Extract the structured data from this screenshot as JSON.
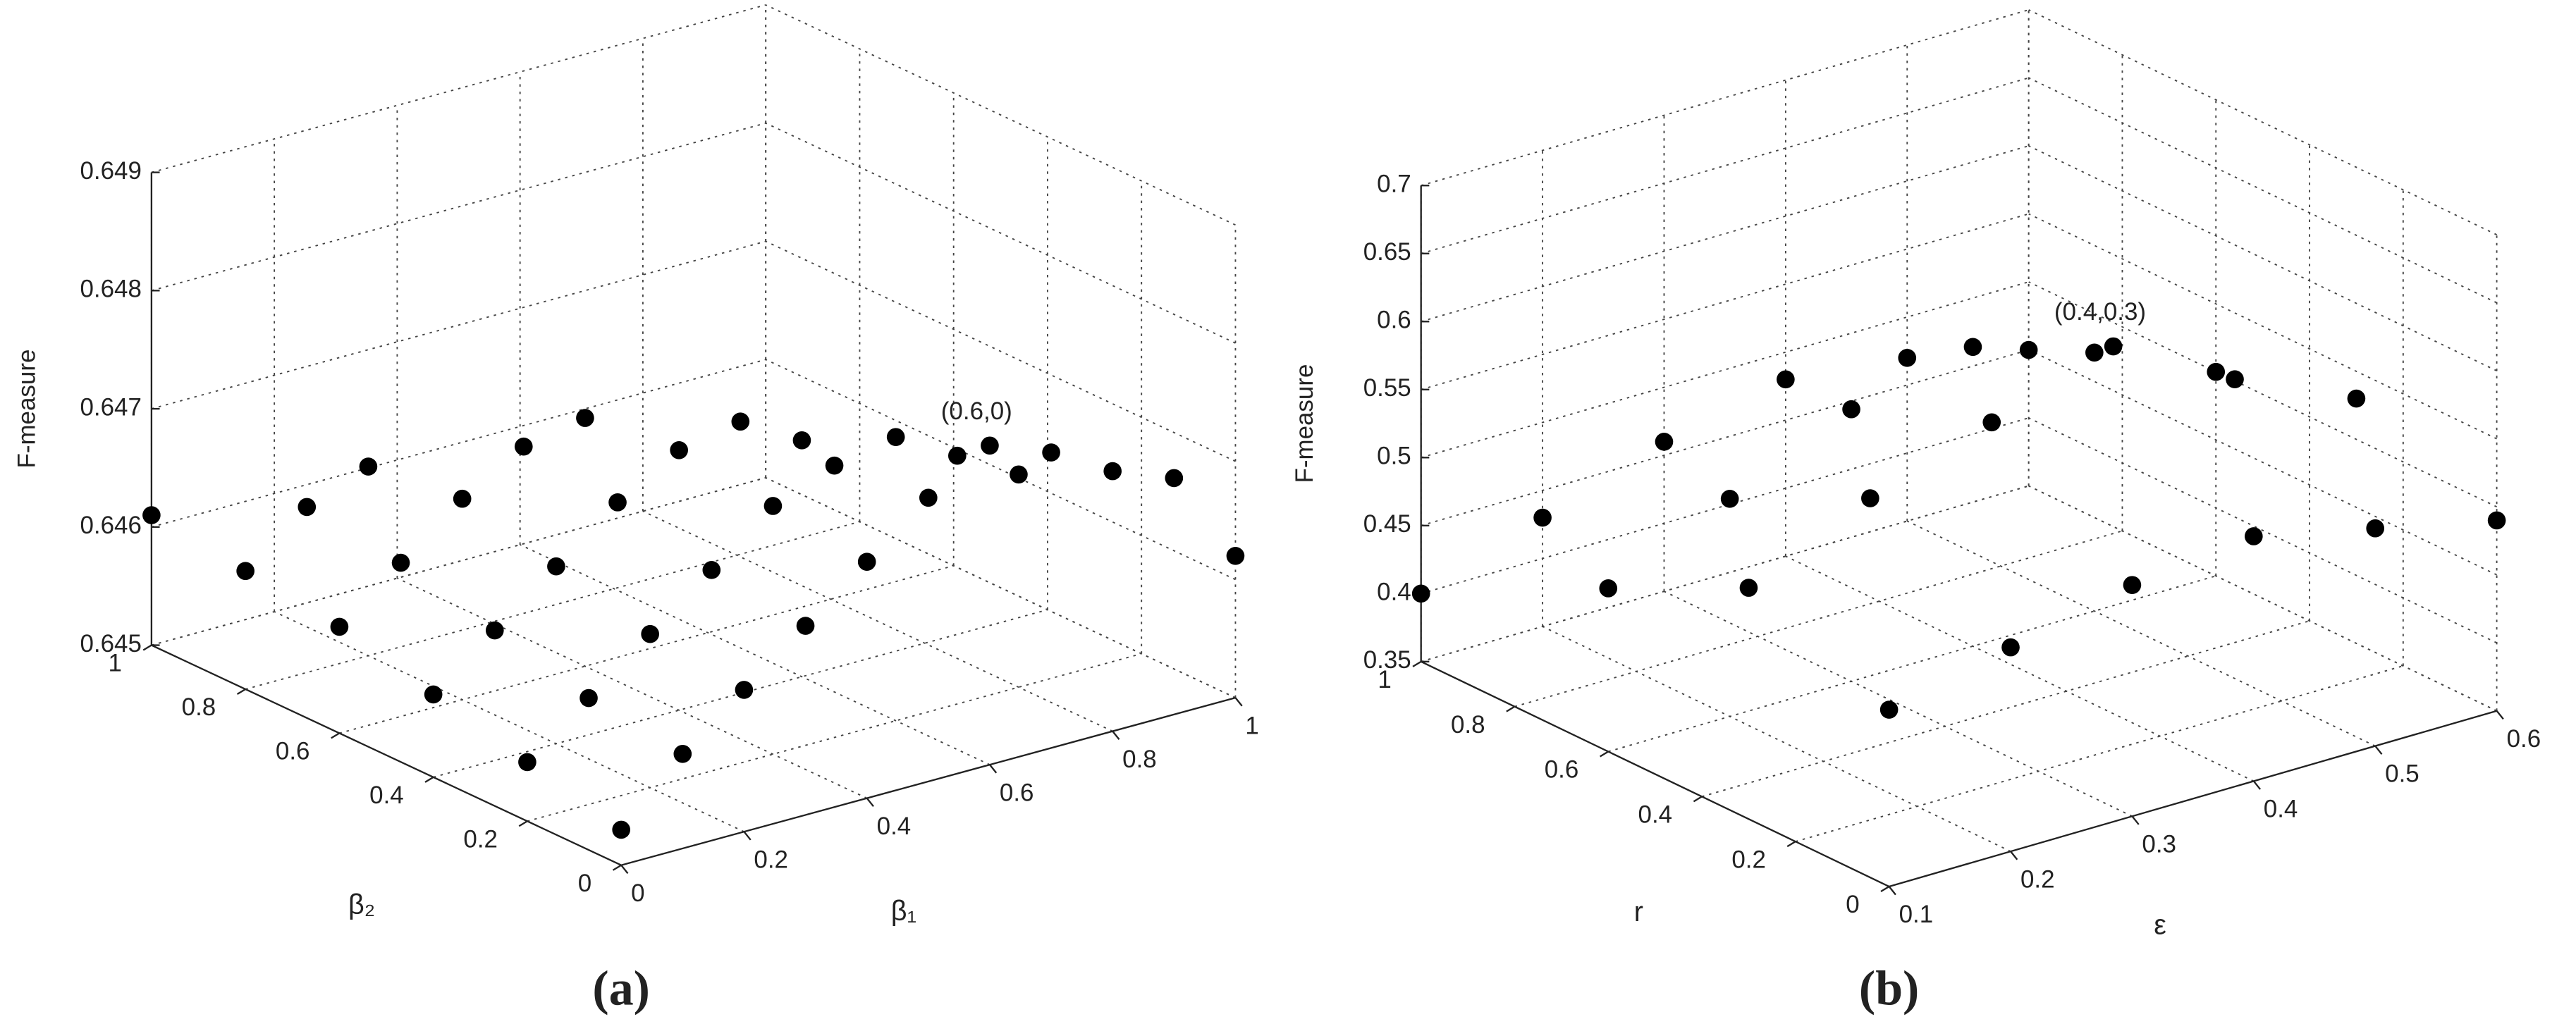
{
  "chart_data": [
    {
      "type": "scatter3d",
      "caption": "(a)",
      "xlabel": "β₁",
      "ylabel": "β₂",
      "zlabel": "F-measure",
      "annotation": "(0.6,0)",
      "color": "#000000",
      "xlim": [
        0,
        1
      ],
      "ylim": [
        0,
        1
      ],
      "zlim": [
        0.645,
        0.649
      ],
      "xticks": [
        0,
        0.2,
        0.4,
        0.6,
        0.8,
        1
      ],
      "yticks": [
        0,
        0.2,
        0.4,
        0.6,
        0.8,
        1
      ],
      "zticks": [
        0.645,
        0.646,
        0.647,
        0.648,
        0.649
      ],
      "grid": true,
      "x": [
        0,
        0.1,
        0.2,
        0.3,
        0.4,
        0.5,
        0.6,
        0.7,
        0.8,
        0.9,
        1,
        0,
        0.1,
        0.2,
        0.3,
        0.4,
        0.5,
        0.6,
        0.7,
        0.8,
        0,
        0.1,
        0.2,
        0.3,
        0.4,
        0.5,
        0.6,
        0,
        0.1,
        0.2,
        0.3,
        0.4,
        0,
        0.1,
        0.2,
        0
      ],
      "y": [
        0,
        0,
        0,
        0,
        0,
        0,
        0,
        0,
        0,
        0,
        0,
        0.2,
        0.2,
        0.2,
        0.2,
        0.2,
        0.2,
        0.2,
        0.2,
        0.2,
        0.4,
        0.4,
        0.4,
        0.4,
        0.4,
        0.4,
        0.4,
        0.6,
        0.6,
        0.6,
        0.6,
        0.6,
        0.8,
        0.8,
        0.8,
        1
      ],
      "z": [
        0.6453,
        0.6458,
        0.6462,
        0.6466,
        0.647,
        0.6474,
        0.6477,
        0.6475,
        0.6472,
        0.647,
        0.6462,
        0.6455,
        0.6459,
        0.6463,
        0.6467,
        0.6471,
        0.6473,
        0.6474,
        0.6471,
        0.6468,
        0.6457,
        0.6461,
        0.6465,
        0.6469,
        0.6472,
        0.6473,
        0.647,
        0.6459,
        0.6463,
        0.6467,
        0.647,
        0.6471,
        0.646,
        0.6464,
        0.6466,
        0.6461
      ]
    },
    {
      "type": "scatter3d",
      "caption": "(b)",
      "xlabel": "ε",
      "ylabel": "r",
      "zlabel": "F-measure",
      "annotation": "(0.4,0.3)",
      "color": "#000000",
      "xlim": [
        0.1,
        0.6
      ],
      "ylim": [
        0,
        1
      ],
      "zlim": [
        0.35,
        0.7
      ],
      "xticks": [
        0.1,
        0.2,
        0.3,
        0.4,
        0.5,
        0.6
      ],
      "yticks": [
        0,
        0.2,
        0.4,
        0.6,
        0.8,
        1
      ],
      "zticks": [
        0.35,
        0.4,
        0.45,
        0.5,
        0.55,
        0.6,
        0.65,
        0.7
      ],
      "grid": true,
      "x": [
        0.1,
        0.2,
        0.3,
        0.4,
        0.5,
        0.6,
        0.1,
        0.2,
        0.3,
        0.4,
        0.5,
        0.6,
        0.1,
        0.2,
        0.3,
        0.4,
        0.5,
        0.6,
        0.1,
        0.2,
        0.3,
        0.4,
        0.5,
        0.6
      ],
      "y": [
        0,
        0,
        0,
        0,
        0,
        0,
        0.3,
        0.3,
        0.3,
        0.3,
        0.3,
        0.3,
        0.6,
        0.6,
        0.6,
        0.6,
        0.6,
        0.6,
        1,
        1,
        1,
        1,
        1,
        1
      ],
      "z": [
        0.48,
        0.5,
        0.52,
        0.53,
        0.51,
        0.49,
        0.52,
        0.56,
        0.59,
        0.62,
        0.57,
        0.53,
        0.47,
        0.51,
        0.55,
        0.57,
        0.54,
        0.5,
        0.4,
        0.43,
        0.46,
        0.48,
        0.47,
        0.45
      ]
    }
  ]
}
